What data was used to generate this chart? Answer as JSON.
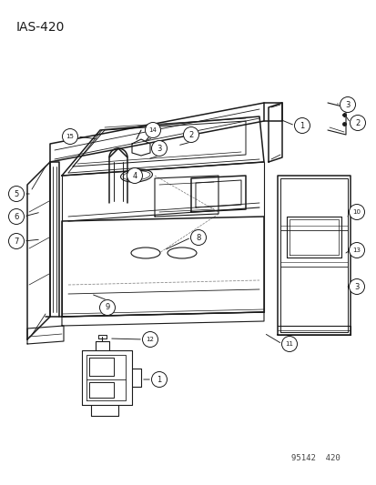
{
  "title": "IAS-420",
  "watermark": "95142  420",
  "bg_color": "#ffffff",
  "fg_color": "#1a1a1a",
  "title_fontsize": 10,
  "watermark_fontsize": 6.5
}
